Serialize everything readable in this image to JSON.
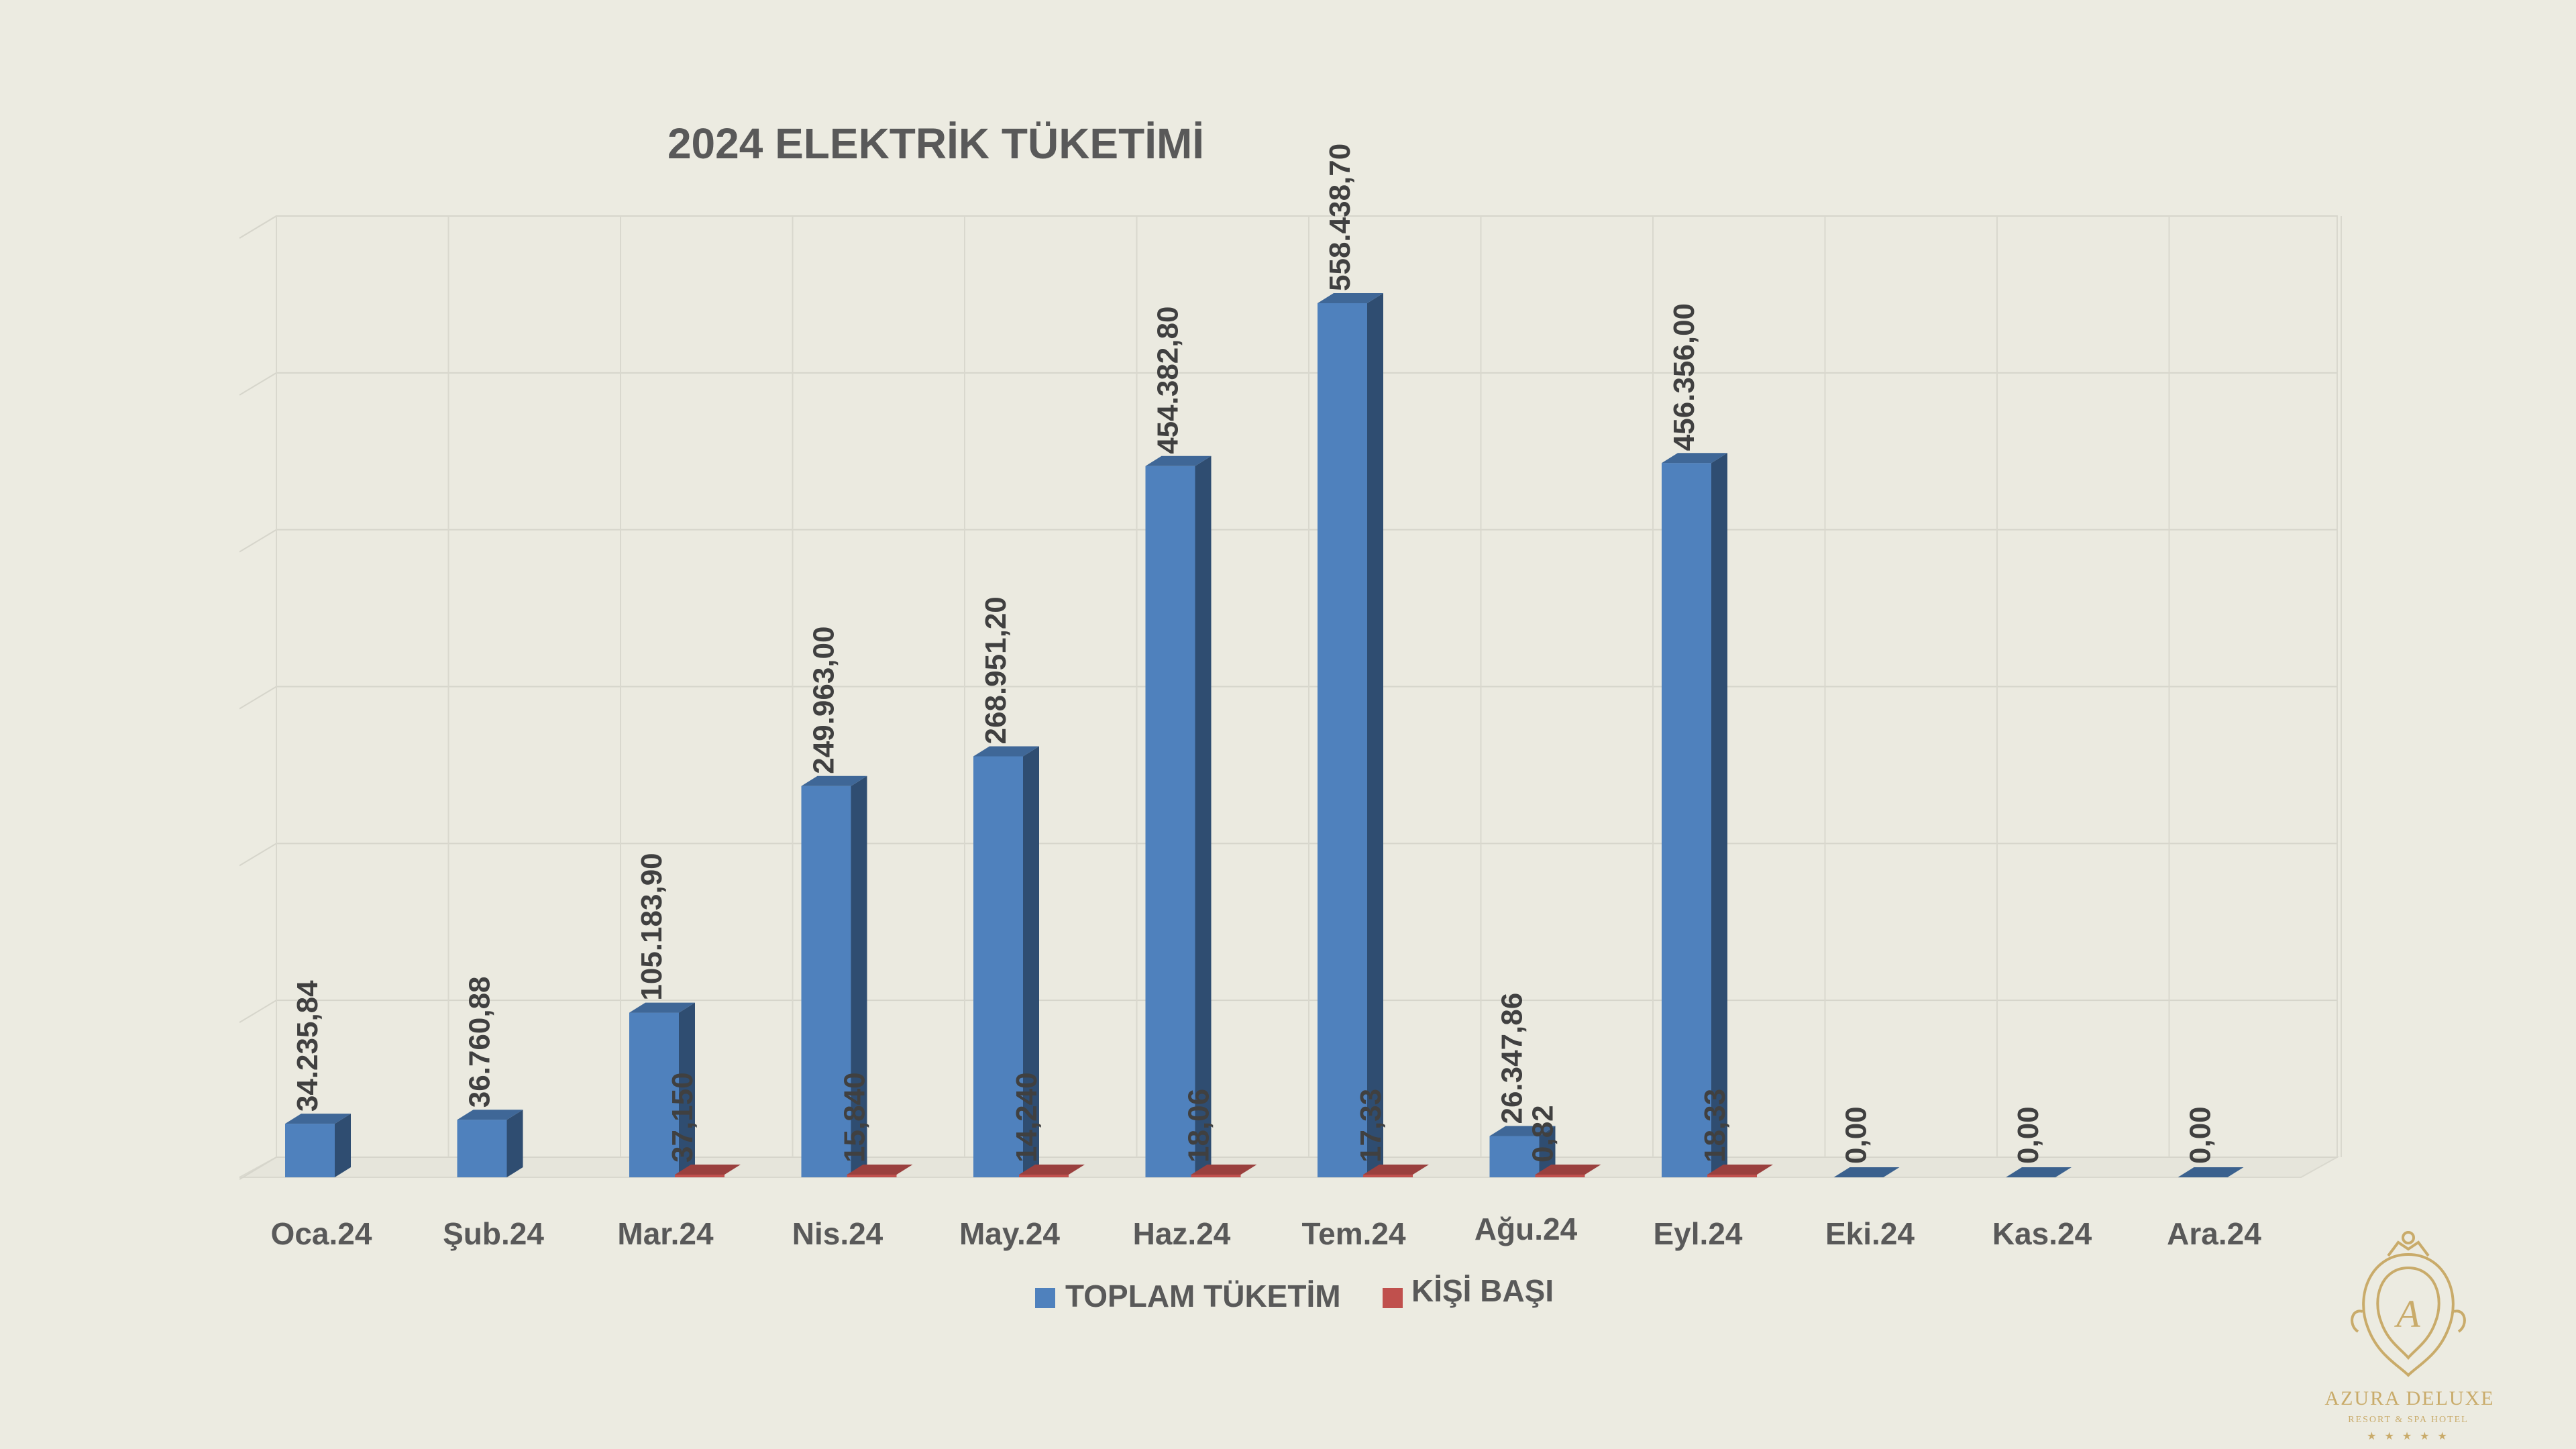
{
  "chart_data": {
    "type": "bar",
    "title": "2024 ELEKTRİK TÜKETİMİ",
    "categories": [
      "Oca.24",
      "Şub.24",
      "Mar.24",
      "Nis.24",
      "May.24",
      "Haz.24",
      "Tem.24",
      "Ağu.24",
      "Eyl.24",
      "Eki.24",
      "Kas.24",
      "Ara.24"
    ],
    "series": [
      {
        "name": "TOPLAM TÜKETİM",
        "color": "#4f81bd",
        "values": [
          34235.84,
          36760.88,
          105183.9,
          249963.0,
          268951.2,
          454382.8,
          558438.7,
          26347.86,
          456356.0,
          0,
          0,
          0
        ],
        "labels": [
          "34.235,84",
          "36.760,88",
          "105.183,90",
          "249.963,00",
          "268.951,20",
          "454.382,80",
          "558.438,70",
          "26.347,86",
          "456.356,00",
          "0,00",
          "0,00",
          "0,00"
        ]
      },
      {
        "name": "KİŞİ BAŞI",
        "color": "#c0504d",
        "values": [
          null,
          null,
          37.15,
          15.84,
          14.24,
          18.06,
          17.33,
          0.82,
          18.33,
          null,
          null,
          null
        ],
        "labels": [
          "",
          "",
          "37,150",
          "15,840",
          "14,240",
          "18,06",
          "17,33",
          "0,82",
          "18,33",
          "",
          "",
          ""
        ]
      }
    ],
    "ylim": [
      0,
      600000
    ],
    "grid": true,
    "legend_position": "bottom",
    "chart_style": "3d-clustered-column"
  },
  "logo": {
    "name": "AZURA DELUXE",
    "tagline": "RESORT & SPA HOTEL",
    "stars": "★ ★ ★ ★ ★",
    "monogram": "A"
  }
}
